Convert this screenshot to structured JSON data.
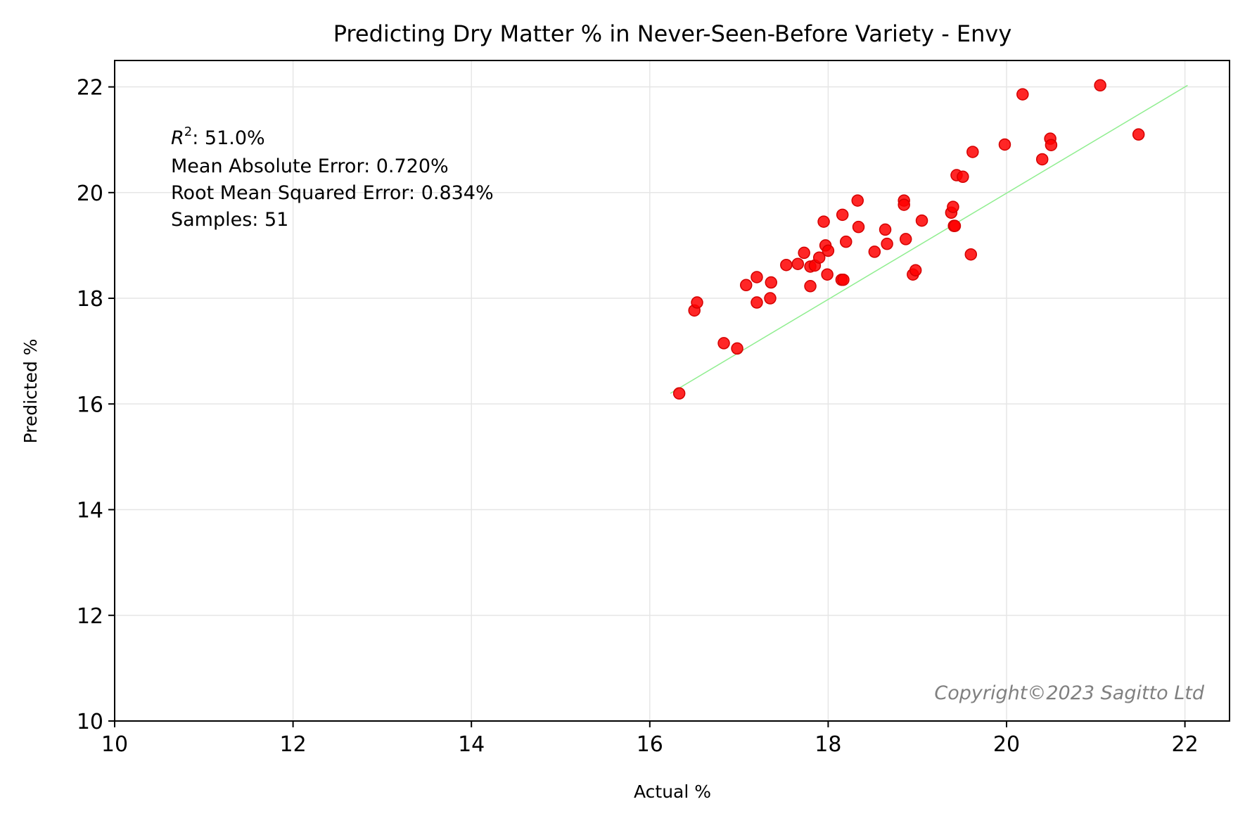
{
  "chart_data": {
    "type": "scatter",
    "title": "Predicting Dry Matter % in Never-Seen-Before Variety - Envy",
    "xlabel": "Actual %",
    "ylabel": "Predicted %",
    "xlim": [
      10,
      22.5
    ],
    "ylim": [
      10,
      22.5
    ],
    "xticks": [
      10,
      12,
      14,
      16,
      18,
      20,
      22
    ],
    "yticks": [
      10,
      12,
      14,
      16,
      18,
      20,
      22
    ],
    "grid": true,
    "point_color": "#ff0000",
    "fit_line_color": "#90ee90",
    "fit_line": [
      [
        16.23,
        16.2
      ],
      [
        22.03,
        22.03
      ]
    ],
    "stats": {
      "r2_prefix": "R",
      "r2_sup": "2",
      "r2_value": ": 51.0%",
      "mae": "Mean Absolute Error: 0.720%",
      "rmse": "Root Mean Squared Error: 0.834%",
      "samples": "Samples: 51"
    },
    "copyright": "Copyright©2023  Sagitto  Ltd",
    "points": [
      [
        16.33,
        16.2
      ],
      [
        16.5,
        17.77
      ],
      [
        16.53,
        17.92
      ],
      [
        16.83,
        17.15
      ],
      [
        16.98,
        17.05
      ],
      [
        17.08,
        18.25
      ],
      [
        17.2,
        18.4
      ],
      [
        17.2,
        17.92
      ],
      [
        17.35,
        18.0
      ],
      [
        17.36,
        18.3
      ],
      [
        17.53,
        18.63
      ],
      [
        17.66,
        18.65
      ],
      [
        17.73,
        18.86
      ],
      [
        17.8,
        18.6
      ],
      [
        17.8,
        18.23
      ],
      [
        17.85,
        18.62
      ],
      [
        17.9,
        18.77
      ],
      [
        17.95,
        19.45
      ],
      [
        17.97,
        19.0
      ],
      [
        18.0,
        18.9
      ],
      [
        17.99,
        18.45
      ],
      [
        18.15,
        18.35
      ],
      [
        18.17,
        18.35
      ],
      [
        18.16,
        19.58
      ],
      [
        18.2,
        19.07
      ],
      [
        18.33,
        19.85
      ],
      [
        18.34,
        19.35
      ],
      [
        18.52,
        18.88
      ],
      [
        18.64,
        19.3
      ],
      [
        18.66,
        19.03
      ],
      [
        18.85,
        19.85
      ],
      [
        18.85,
        19.77
      ],
      [
        18.87,
        19.12
      ],
      [
        18.95,
        18.45
      ],
      [
        18.98,
        18.53
      ],
      [
        19.05,
        19.47
      ],
      [
        19.38,
        19.62
      ],
      [
        19.4,
        19.73
      ],
      [
        19.41,
        19.37
      ],
      [
        19.42,
        19.37
      ],
      [
        19.44,
        20.33
      ],
      [
        19.51,
        20.3
      ],
      [
        19.6,
        18.83
      ],
      [
        19.62,
        20.77
      ],
      [
        19.98,
        20.91
      ],
      [
        20.4,
        20.63
      ],
      [
        20.49,
        21.02
      ],
      [
        20.5,
        20.9
      ],
      [
        20.18,
        21.86
      ],
      [
        21.05,
        22.03
      ],
      [
        21.48,
        21.1
      ]
    ]
  }
}
